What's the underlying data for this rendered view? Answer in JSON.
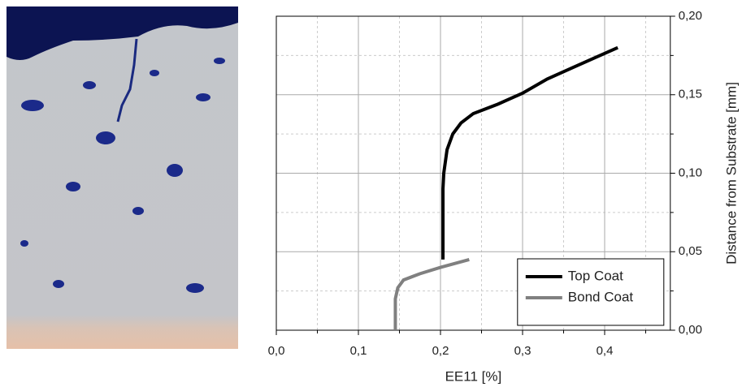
{
  "chart_data": {
    "type": "line",
    "x_label": "EE11 [%]",
    "y_label": "Distance from Substrate [mm]",
    "xlim": [
      0,
      0.48
    ],
    "ylim": [
      0,
      0.2
    ],
    "xticks": [
      {
        "value": 0,
        "label": "0,0"
      },
      {
        "value": 0.1,
        "label": "0,1"
      },
      {
        "value": 0.2,
        "label": "0,2"
      },
      {
        "value": 0.3,
        "label": "0,3"
      },
      {
        "value": 0.4,
        "label": "0,4"
      }
    ],
    "yticks": [
      {
        "value": 0,
        "label": "0,00"
      },
      {
        "value": 0.05,
        "label": "0,05"
      },
      {
        "value": 0.1,
        "label": "0,10"
      },
      {
        "value": 0.15,
        "label": "0,15"
      },
      {
        "value": 0.2,
        "label": "0,20"
      }
    ],
    "xminorticks": [
      0.05,
      0.15,
      0.25,
      0.35,
      0.45
    ],
    "yminorticks": [
      0.025,
      0.075,
      0.125,
      0.175
    ],
    "grid": true,
    "y_axis_side": "right",
    "legend": "lower right",
    "series": [
      {
        "name": "Top Coat",
        "color": "#000000",
        "x": [
          0.203,
          0.203,
          0.204,
          0.208,
          0.215,
          0.225,
          0.24,
          0.27,
          0.3,
          0.33,
          0.36,
          0.39,
          0.416
        ],
        "values": [
          0.045,
          0.09,
          0.1,
          0.115,
          0.125,
          0.132,
          0.138,
          0.144,
          0.151,
          0.16,
          0.167,
          0.174,
          0.18
        ]
      },
      {
        "name": "Bond Coat",
        "color": "#808080",
        "x": [
          0.145,
          0.145,
          0.148,
          0.155,
          0.175,
          0.2,
          0.235
        ],
        "values": [
          0,
          0.02,
          0.027,
          0.032,
          0.036,
          0.04,
          0.045
        ]
      }
    ]
  }
}
